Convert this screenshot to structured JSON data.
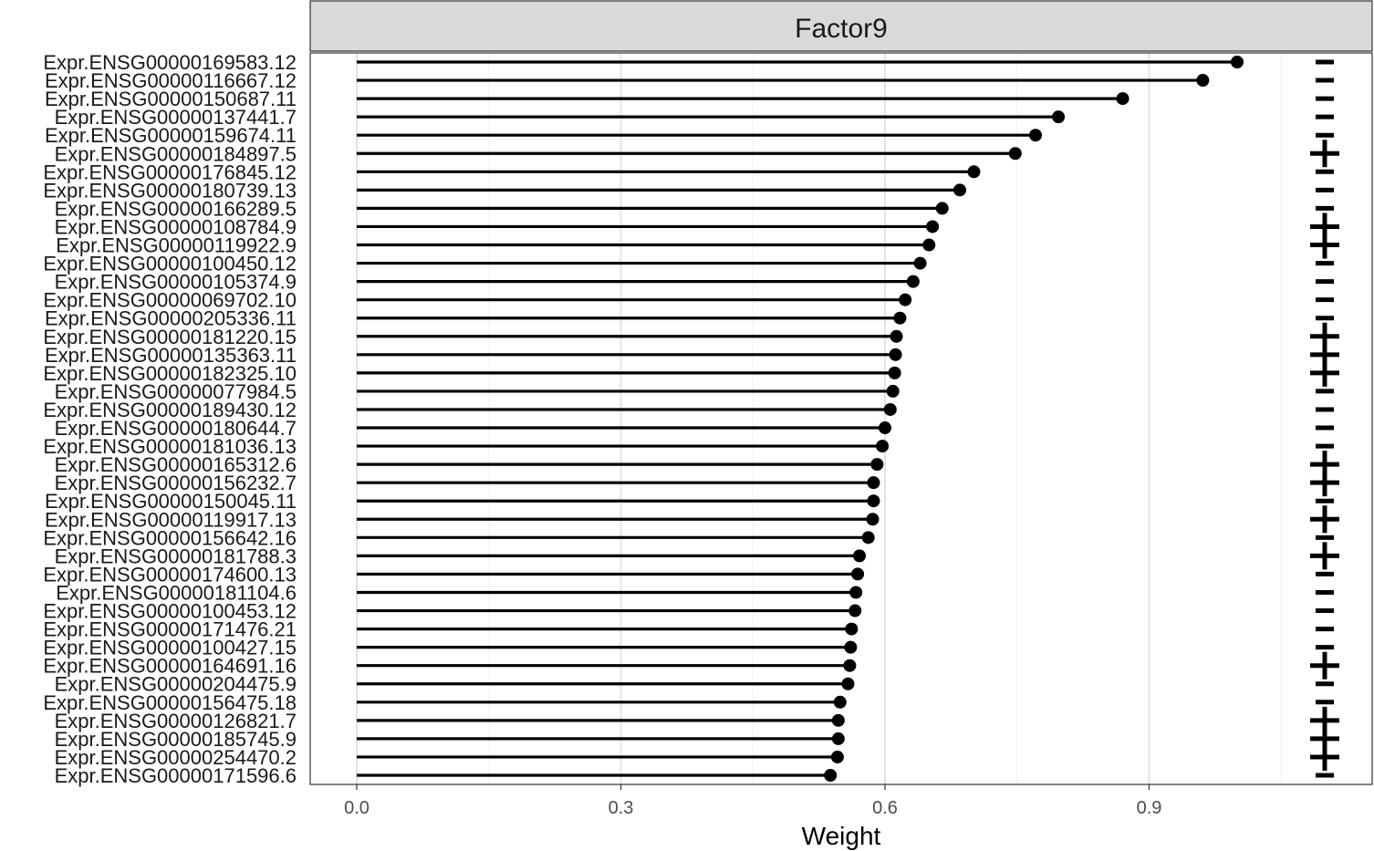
{
  "chart_data": {
    "type": "lollipop",
    "facet_title": "Factor9",
    "xlabel": "Weight",
    "ylabel": "",
    "xlim": [
      -0.05,
      1.15
    ],
    "xticks": [
      0.0,
      0.3,
      0.6,
      0.9
    ],
    "xtick_labels": [
      "0.0",
      "0.3",
      "0.6",
      "0.9"
    ],
    "grid": true,
    "legend": "none",
    "categories": [
      "Expr.ENSG00000169583.12",
      "Expr.ENSG00000116667.12",
      "Expr.ENSG00000150687.11",
      "Expr.ENSG00000137441.7",
      "Expr.ENSG00000159674.11",
      "Expr.ENSG00000184897.5",
      "Expr.ENSG00000176845.12",
      "Expr.ENSG00000180739.13",
      "Expr.ENSG00000166289.5",
      "Expr.ENSG00000108784.9",
      "Expr.ENSG00000119922.9",
      "Expr.ENSG00000100450.12",
      "Expr.ENSG00000105374.9",
      "Expr.ENSG00000069702.10",
      "Expr.ENSG00000205336.11",
      "Expr.ENSG00000181220.15",
      "Expr.ENSG00000135363.11",
      "Expr.ENSG00000182325.10",
      "Expr.ENSG00000077984.5",
      "Expr.ENSG00000189430.12",
      "Expr.ENSG00000180644.7",
      "Expr.ENSG00000181036.13",
      "Expr.ENSG00000165312.6",
      "Expr.ENSG00000156232.7",
      "Expr.ENSG00000150045.11",
      "Expr.ENSG00000119917.13",
      "Expr.ENSG00000156642.16",
      "Expr.ENSG00000181788.3",
      "Expr.ENSG00000174600.13",
      "Expr.ENSG00000181104.6",
      "Expr.ENSG00000100453.12",
      "Expr.ENSG00000171476.21",
      "Expr.ENSG00000100427.15",
      "Expr.ENSG00000164691.16",
      "Expr.ENSG00000204475.9",
      "Expr.ENSG00000156475.18",
      "Expr.ENSG00000126821.7",
      "Expr.ENSG00000185745.9",
      "Expr.ENSG00000254470.2",
      "Expr.ENSG00000171596.6"
    ],
    "values": [
      1.0,
      0.961,
      0.87,
      0.797,
      0.771,
      0.748,
      0.701,
      0.685,
      0.665,
      0.654,
      0.65,
      0.64,
      0.632,
      0.623,
      0.617,
      0.613,
      0.612,
      0.611,
      0.609,
      0.606,
      0.6,
      0.597,
      0.591,
      0.587,
      0.587,
      0.586,
      0.581,
      0.571,
      0.569,
      0.567,
      0.566,
      0.562,
      0.561,
      0.56,
      0.558,
      0.549,
      0.547,
      0.547,
      0.546,
      0.538
    ],
    "signs": [
      "-",
      "-",
      "-",
      "-",
      "-",
      "+",
      "-",
      "-",
      "-",
      "+",
      "+",
      "-",
      "-",
      "-",
      "-",
      "+",
      "+",
      "+",
      "-",
      "-",
      "-",
      "-",
      "+",
      "+",
      "-",
      "+",
      "-",
      "+",
      "-",
      "-",
      "-",
      "-",
      "-",
      "+",
      "-",
      "-",
      "+",
      "+",
      "+",
      "-"
    ]
  }
}
